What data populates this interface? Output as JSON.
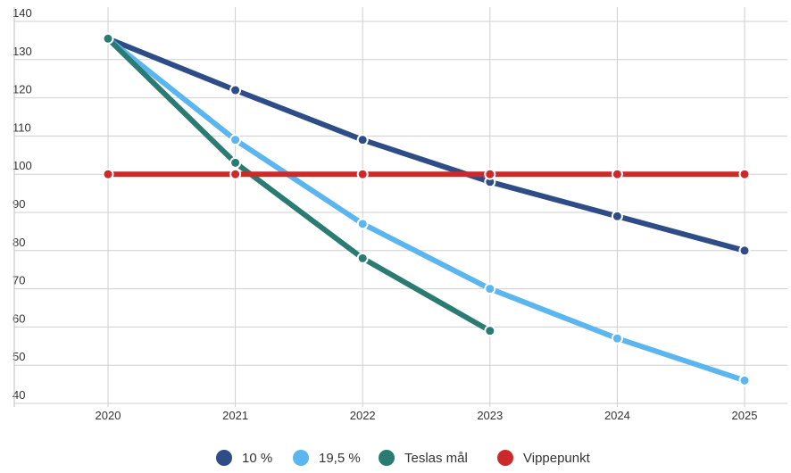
{
  "chart_data": {
    "type": "line",
    "title": "",
    "xlabel": "",
    "ylabel": "",
    "categories": [
      "2020",
      "2021",
      "2022",
      "2023",
      "2024",
      "2025"
    ],
    "ylim": [
      40,
      140
    ],
    "yticks": [
      40,
      50,
      60,
      70,
      80,
      90,
      100,
      110,
      120,
      130,
      140
    ],
    "grid": true,
    "legend_position": "bottom",
    "series": [
      {
        "name": "10 %",
        "color": "#2e4d86",
        "values": [
          135.5,
          122,
          109,
          98,
          89,
          80
        ]
      },
      {
        "name": "19,5 %",
        "color": "#5bb5ee",
        "values": [
          135.5,
          109,
          87,
          70,
          57,
          46
        ]
      },
      {
        "name": "Teslas mål",
        "color": "#2a7c72",
        "values": [
          135.5,
          103,
          78,
          59,
          null,
          null
        ]
      },
      {
        "name": "Vippepunkt",
        "color": "#cc2a2a",
        "values": [
          100,
          100,
          100,
          100,
          100,
          100
        ]
      }
    ]
  }
}
